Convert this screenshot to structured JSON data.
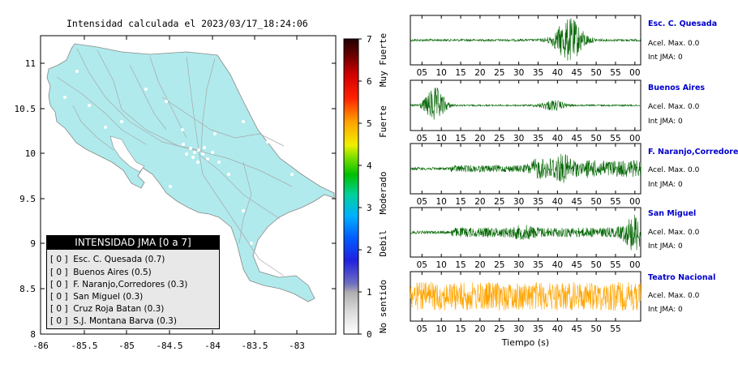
{
  "map": {
    "title": "Intensidad calculada el 2023/03/17_18:24:06",
    "x_ticks": [
      "-86",
      "-85.5",
      "-85",
      "-84.5",
      "-84",
      "-83.5",
      "-83"
    ],
    "y_ticks": [
      "11",
      "10.5",
      "10",
      "9.5",
      "9",
      "8.5",
      "8"
    ],
    "land_color": "#b0eaec",
    "legend": {
      "title": "INTENSIDAD JMA [0 a 7]",
      "items": [
        {
          "text": "[ 0 ]  Esc. C. Quesada (0.7)"
        },
        {
          "text": "[ 0 ]  Buenos Aires (0.5)"
        },
        {
          "text": "[ 0 ]  F. Naranjo,Corredores (0.3)"
        },
        {
          "text": "[ 0 ]  San Miguel (0.3)"
        },
        {
          "text": "[ 0 ]  Cruz Roja Batan (0.3)"
        },
        {
          "text": "[ 0 ]  S.J. Montana Barva (0.3)"
        }
      ]
    }
  },
  "colorbar": {
    "ticks": [
      "7",
      "6",
      "5",
      "4",
      "3",
      "2",
      "1",
      "0"
    ],
    "labels": [
      "Muy Fuerte",
      "Fuerte",
      "Moderado",
      "Debil",
      "No sentido"
    ]
  },
  "stations": [
    {
      "name": "Esc. C. Quesada",
      "acel": "Acel. Max. 0.0",
      "int": "Int JMA: 0",
      "color": "#006400",
      "x_ticks": [
        "05",
        "10",
        "15",
        "20",
        "25",
        "30",
        "35",
        "40",
        "45",
        "50",
        "55",
        "00"
      ]
    },
    {
      "name": "Buenos Aires",
      "acel": "Acel. Max. 0.0",
      "int": "Int JMA: 0",
      "color": "#006400",
      "x_ticks": [
        "05",
        "10",
        "15",
        "20",
        "25",
        "30",
        "35",
        "40",
        "45",
        "50",
        "55",
        "00"
      ]
    },
    {
      "name": "F. Naranjo,Corredores",
      "acel": "Acel. Max. 0.0",
      "int": "Int JMA: 0",
      "color": "#006400",
      "x_ticks": [
        "05",
        "10",
        "15",
        "20",
        "25",
        "30",
        "35",
        "40",
        "45",
        "50",
        "55",
        "00"
      ]
    },
    {
      "name": "San Miguel",
      "acel": "Acel. Max. 0.0",
      "int": "Int JMA: 0",
      "color": "#006400",
      "x_ticks": [
        "05",
        "10",
        "15",
        "20",
        "25",
        "30",
        "35",
        "40",
        "45",
        "50",
        "55",
        "00"
      ]
    },
    {
      "name": "Teatro Nacional",
      "acel": "Acel. Max. 0.0",
      "int": "Int JMA: 0",
      "color": "#ffa500",
      "x_ticks": [
        "05",
        "10",
        "15",
        "20",
        "25",
        "30",
        "35",
        "40",
        "45",
        "50",
        "55"
      ]
    }
  ],
  "time_axis_label": "Tiempo (s)"
}
